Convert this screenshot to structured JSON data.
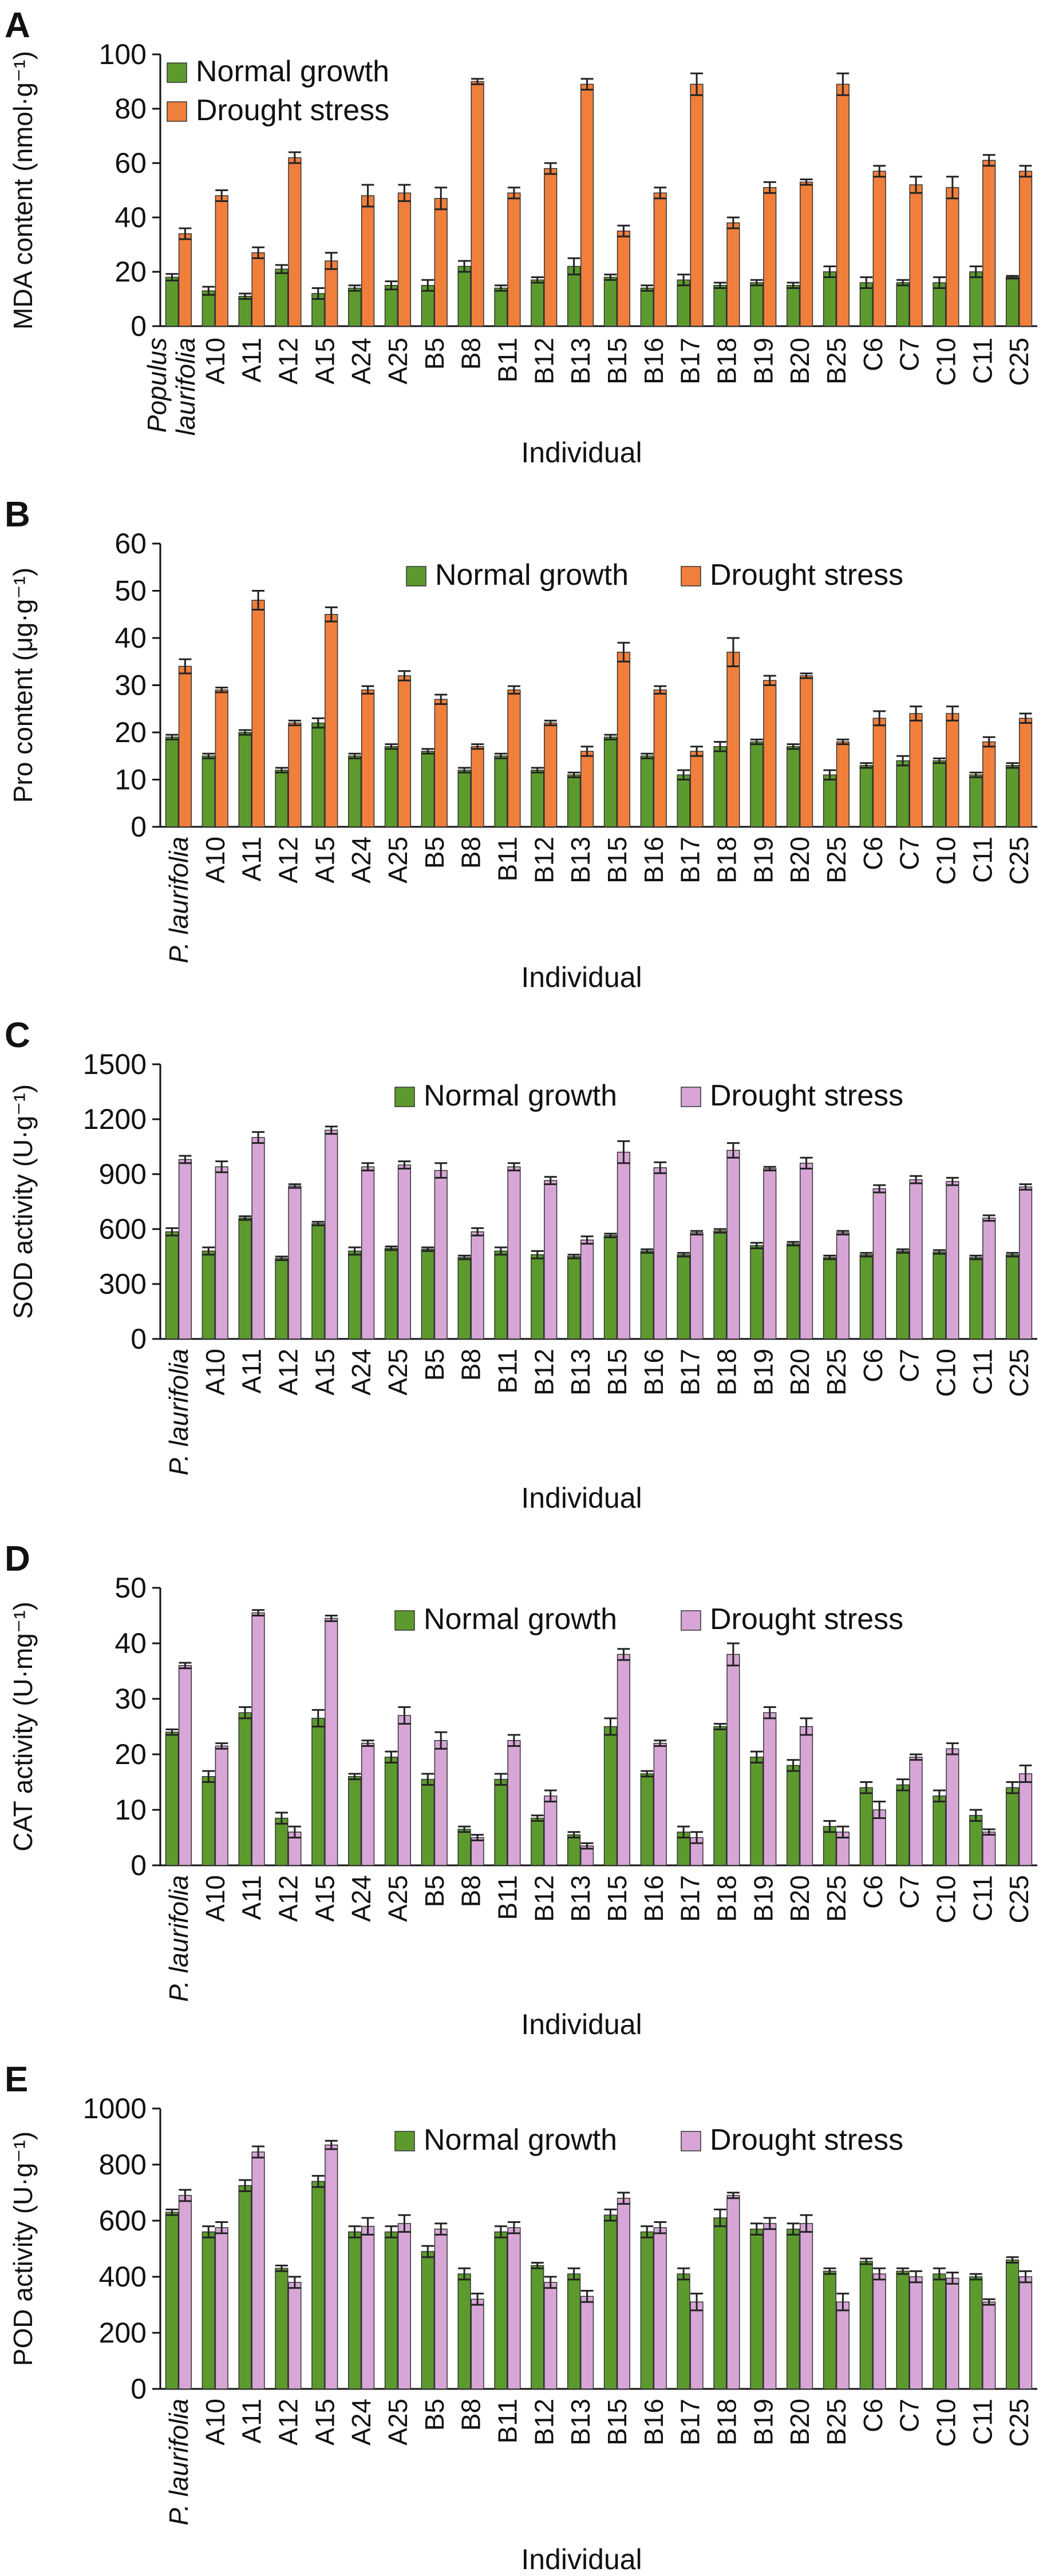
{
  "colors": {
    "normal_growth": "#5d9a2e",
    "drought_orange": "#f07f3c",
    "drought_pink": "#d7a6d6",
    "axis": "#111111",
    "error_bar": "#222222"
  },
  "chart_data": [
    {
      "panel": "A",
      "type": "bar",
      "ylabel": "MDA content (nmol·g⁻¹)",
      "xlabel": "Individual",
      "ylim": [
        0,
        100
      ],
      "yticks": [
        0,
        20,
        40,
        60,
        80,
        100
      ],
      "legend_position": "top-left",
      "categories": [
        "Populus laurifolia",
        "A10",
        "A11",
        "A12",
        "A15",
        "A24",
        "A25",
        "B5",
        "B8",
        "B11",
        "B12",
        "B13",
        "B15",
        "B16",
        "B17",
        "B18",
        "B19",
        "B20",
        "B25",
        "C6",
        "C7",
        "C10",
        "C11",
        "C25"
      ],
      "series": [
        {
          "name": "Normal growth",
          "color": "#5d9a2e",
          "values": [
            18,
            13,
            11,
            21,
            12,
            14,
            15,
            15,
            22,
            14,
            17,
            22,
            18,
            14,
            17,
            15,
            16,
            15,
            20,
            16,
            16,
            16,
            20,
            18
          ],
          "errors": [
            1.2,
            1.5,
            1,
            1.5,
            2,
            1,
            1.5,
            2,
            2,
            1,
            1,
            3,
            1,
            1,
            2,
            1,
            1,
            1,
            2,
            2,
            1,
            2,
            2,
            0.5
          ]
        },
        {
          "name": "Drought stress",
          "color": "#f07f3c",
          "values": [
            34,
            48,
            27,
            62,
            24,
            48,
            49,
            47,
            90,
            49,
            58,
            89,
            35,
            49,
            89,
            38,
            51,
            53,
            89,
            57,
            52,
            51,
            61,
            57
          ],
          "errors": [
            2,
            2,
            2,
            2,
            3,
            4,
            3,
            4,
            1,
            2,
            2,
            2,
            2,
            2,
            4,
            2,
            2,
            1,
            4,
            2,
            3,
            4,
            2,
            2
          ]
        }
      ]
    },
    {
      "panel": "B",
      "type": "bar",
      "ylabel": "Pro content (μg·g⁻¹)",
      "xlabel": "Individual",
      "ylim": [
        0,
        60
      ],
      "yticks": [
        0,
        10,
        20,
        30,
        40,
        50,
        60
      ],
      "legend_position": "top-right",
      "categories": [
        "P. laurifolia",
        "A10",
        "A11",
        "A12",
        "A15",
        "A24",
        "A25",
        "B5",
        "B8",
        "B11",
        "B12",
        "B13",
        "B15",
        "B16",
        "B17",
        "B18",
        "B19",
        "B20",
        "B25",
        "C6",
        "C7",
        "C10",
        "C11",
        "C25"
      ],
      "series": [
        {
          "name": "Normal growth",
          "color": "#5d9a2e",
          "values": [
            19,
            15,
            20,
            12,
            22,
            15,
            17,
            16,
            12,
            15,
            12,
            11,
            19,
            15,
            11,
            17,
            18,
            17,
            11,
            13,
            14,
            14,
            11,
            13
          ],
          "errors": [
            0.5,
            0.5,
            0.5,
            0.5,
            1,
            0.5,
            0.5,
            0.5,
            0.5,
            0.5,
            0.5,
            0.5,
            0.5,
            0.5,
            1,
            1,
            0.5,
            0.5,
            1,
            0.5,
            1,
            0.5,
            0.5,
            0.5
          ]
        },
        {
          "name": "Drought stress",
          "color": "#f07f3c",
          "values": [
            34,
            29,
            48,
            22,
            45,
            29,
            32,
            27,
            17,
            29,
            22,
            16,
            37,
            29,
            16,
            37,
            31,
            32,
            18,
            23,
            24,
            24,
            18,
            23
          ],
          "errors": [
            1.5,
            0.5,
            2,
            0.5,
            1.5,
            0.8,
            1,
            1,
            0.5,
            0.8,
            0.5,
            1,
            2,
            0.8,
            1,
            3,
            1,
            0.5,
            0.5,
            1.5,
            1.5,
            1.5,
            1,
            1
          ]
        }
      ]
    },
    {
      "panel": "C",
      "type": "bar",
      "ylabel": "SOD activity (U·g⁻¹)",
      "xlabel": "Individual",
      "ylim": [
        0,
        1500
      ],
      "yticks": [
        0,
        300,
        600,
        900,
        1200,
        1500
      ],
      "legend_position": "top-right",
      "categories": [
        "P. laurifolia",
        "A10",
        "A11",
        "A12",
        "A15",
        "A24",
        "A25",
        "B5",
        "B8",
        "B11",
        "B12",
        "B13",
        "B15",
        "B16",
        "B17",
        "B18",
        "B19",
        "B20",
        "B25",
        "C6",
        "C7",
        "C10",
        "C11",
        "C25"
      ],
      "series": [
        {
          "name": "Normal growth",
          "color": "#5d9a2e",
          "values": [
            585,
            480,
            660,
            440,
            630,
            480,
            495,
            490,
            445,
            480,
            460,
            450,
            565,
            480,
            460,
            590,
            510,
            520,
            445,
            460,
            480,
            475,
            445,
            460
          ],
          "errors": [
            20,
            20,
            10,
            10,
            10,
            20,
            10,
            10,
            10,
            20,
            20,
            10,
            10,
            10,
            10,
            10,
            15,
            10,
            10,
            10,
            10,
            10,
            10,
            10
          ]
        },
        {
          "name": "Drought stress",
          "color": "#d7a6d6",
          "values": [
            980,
            940,
            1100,
            835,
            1140,
            940,
            950,
            920,
            585,
            940,
            865,
            540,
            1020,
            935,
            580,
            1030,
            930,
            960,
            580,
            820,
            870,
            860,
            660,
            830
          ],
          "errors": [
            20,
            30,
            30,
            10,
            20,
            20,
            20,
            40,
            20,
            20,
            20,
            20,
            60,
            30,
            10,
            40,
            10,
            30,
            10,
            20,
            20,
            20,
            15,
            15
          ]
        }
      ]
    },
    {
      "panel": "D",
      "type": "bar",
      "ylabel": "CAT activity (U·mg⁻¹)",
      "xlabel": "Individual",
      "ylim": [
        0,
        50
      ],
      "yticks": [
        0,
        10,
        20,
        30,
        40,
        50
      ],
      "legend_position": "top-right",
      "categories": [
        "P. laurifolia",
        "A10",
        "A11",
        "A12",
        "A15",
        "A24",
        "A25",
        "B5",
        "B8",
        "B11",
        "B12",
        "B13",
        "B15",
        "B16",
        "B17",
        "B18",
        "B19",
        "B20",
        "B25",
        "C6",
        "C7",
        "C10",
        "C11",
        "C25"
      ],
      "series": [
        {
          "name": "Normal growth",
          "color": "#5d9a2e",
          "values": [
            24,
            16,
            27.5,
            8.5,
            26.5,
            16,
            19.5,
            15.5,
            6.5,
            15.5,
            8.5,
            5.5,
            25,
            16.5,
            6,
            25,
            19.5,
            18,
            7,
            14,
            14.5,
            12.5,
            9,
            14
          ],
          "errors": [
            0.5,
            1,
            1,
            1,
            1.5,
            0.5,
            1,
            1,
            0.5,
            1,
            0.5,
            0.5,
            1.5,
            0.5,
            1,
            0.5,
            1,
            1,
            1,
            1,
            1,
            1,
            1,
            1
          ]
        },
        {
          "name": "Drought stress",
          "color": "#d7a6d6",
          "values": [
            36,
            21.5,
            45.5,
            6,
            44.5,
            22,
            27,
            22.5,
            5,
            22.5,
            12.5,
            3.5,
            38,
            22,
            5,
            38,
            27.5,
            25,
            6,
            10,
            19.5,
            21,
            6,
            16.5
          ],
          "errors": [
            0.5,
            0.5,
            0.5,
            1,
            0.5,
            0.5,
            1.5,
            1.5,
            0.5,
            1,
            1,
            0.5,
            1,
            0.5,
            1,
            2,
            1,
            1.5,
            1,
            1.5,
            0.5,
            1,
            0.5,
            1.5
          ]
        }
      ]
    },
    {
      "panel": "E",
      "type": "bar",
      "ylabel": "POD activity (U·g⁻¹)",
      "xlabel": "Individual",
      "ylim": [
        0,
        1000
      ],
      "yticks": [
        0,
        200,
        400,
        600,
        800,
        1000
      ],
      "legend_position": "top-right",
      "categories": [
        "P. laurifolia",
        "A10",
        "A11",
        "A12",
        "A15",
        "A24",
        "A25",
        "B5",
        "B8",
        "B11",
        "B12",
        "B13",
        "B15",
        "B16",
        "B17",
        "B18",
        "B19",
        "B20",
        "B25",
        "C6",
        "C7",
        "C10",
        "C11",
        "C25"
      ],
      "series": [
        {
          "name": "Normal growth",
          "color": "#5d9a2e",
          "values": [
            630,
            560,
            725,
            430,
            740,
            560,
            560,
            490,
            410,
            560,
            440,
            410,
            620,
            560,
            410,
            610,
            570,
            570,
            420,
            455,
            420,
            410,
            400,
            460
          ],
          "errors": [
            10,
            20,
            20,
            10,
            20,
            20,
            20,
            20,
            20,
            20,
            10,
            20,
            20,
            20,
            20,
            30,
            20,
            20,
            10,
            10,
            10,
            20,
            10,
            10
          ]
        },
        {
          "name": "Drought stress",
          "color": "#d7a6d6",
          "values": [
            690,
            575,
            845,
            380,
            870,
            580,
            590,
            570,
            320,
            575,
            380,
            330,
            680,
            575,
            310,
            690,
            590,
            590,
            310,
            410,
            400,
            395,
            310,
            400
          ],
          "errors": [
            20,
            20,
            20,
            20,
            15,
            30,
            30,
            20,
            20,
            20,
            20,
            20,
            20,
            20,
            30,
            10,
            20,
            30,
            30,
            20,
            20,
            20,
            10,
            20
          ]
        }
      ]
    }
  ]
}
